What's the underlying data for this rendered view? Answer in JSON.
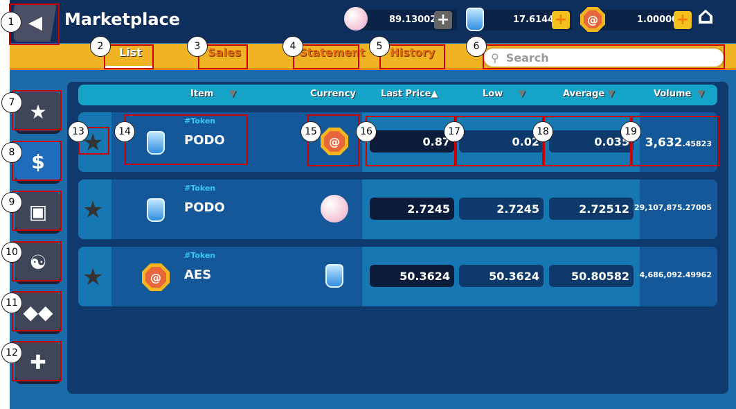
{
  "header": {
    "title": "Marketplace",
    "back_icon": "back-arrow-icon",
    "home_icon": "home-icon",
    "currencies": [
      {
        "icon": "pearl-icon",
        "value": "89.13002",
        "add_enabled": false
      },
      {
        "icon": "potion-jar-icon",
        "value": "17.61445",
        "add_enabled": true
      },
      {
        "icon": "aes-coin-icon",
        "value": "1.00000",
        "add_enabled": true
      }
    ]
  },
  "tabs": [
    {
      "label": "List",
      "active": true
    },
    {
      "label": "Sales"
    },
    {
      "label": "Statement"
    },
    {
      "label": "History"
    }
  ],
  "search": {
    "placeholder": "Search"
  },
  "sidebar": [
    {
      "icon": "star-icon"
    },
    {
      "icon": "money-bag-icon",
      "active": true
    },
    {
      "icon": "chest-icon"
    },
    {
      "icon": "fish-icon"
    },
    {
      "icon": "cards-icon"
    },
    {
      "icon": "puzzle-icon"
    }
  ],
  "table": {
    "columns": [
      {
        "label": "Item",
        "sort": "▼"
      },
      {
        "label": "Currency"
      },
      {
        "label": "Last Price",
        "sort": "▲"
      },
      {
        "label": "Low",
        "sort": "▼"
      },
      {
        "label": "Average",
        "sort": "▼"
      },
      {
        "label": "Volume",
        "sort": "▼"
      }
    ],
    "rows": [
      {
        "tag": "#Token",
        "name": "PODO",
        "item_icon": "potion-jar-icon",
        "currency_icon": "aes-coin-icon",
        "last": "0.87",
        "low": "0.02",
        "avg": "0.035",
        "vol_int": "3,632",
        "vol_dec": ".45823"
      },
      {
        "tag": "#Token",
        "name": "PODO",
        "item_icon": "potion-jar-icon",
        "currency_icon": "pearl-icon",
        "last": "2.7245",
        "low": "2.7245",
        "avg": "2.72512",
        "vol_int": "29,107,875",
        "vol_dec": ".27005"
      },
      {
        "tag": "#Token",
        "name": "AES",
        "item_icon": "aes-coin-icon",
        "currency_icon": "potion-jar-icon",
        "last": "50.3624",
        "low": "50.3624",
        "avg": "50.80582",
        "vol_int": "4,686,092",
        "vol_dec": ".49962"
      }
    ]
  },
  "annotations": [
    "1",
    "2",
    "3",
    "4",
    "5",
    "6",
    "7",
    "8",
    "9",
    "10",
    "11",
    "12",
    "13",
    "14",
    "15",
    "16",
    "17",
    "18",
    "19"
  ]
}
